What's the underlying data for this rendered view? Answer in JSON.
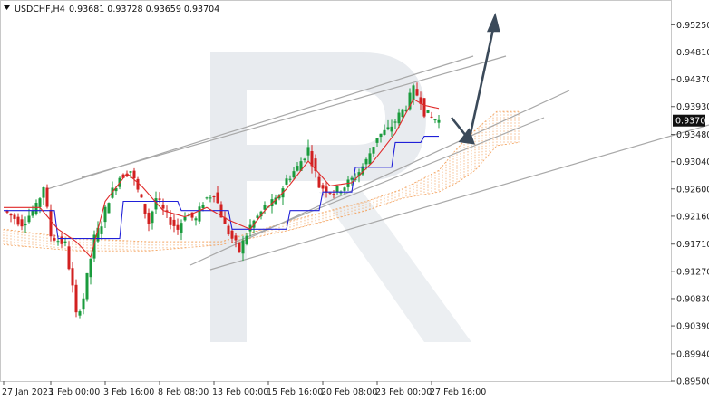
{
  "header": {
    "symbol": "USDCHF,H4",
    "ohlc": "0.93681 0.93728 0.93659 0.93704"
  },
  "current_price": "0.93704",
  "colors": {
    "bull": "#1a9b3c",
    "bear": "#d22020",
    "tenkan": "#e02a2a",
    "kijun": "#2020d8",
    "cloud": "#f3a05a",
    "trendline": "#a8a8a8",
    "arrow": "#3b4a5a",
    "watermark": "#e8ebef",
    "price_box": "#111111"
  },
  "chart_data": {
    "type": "candlestick",
    "ylim": [
      0.895,
      0.9565
    ],
    "y_ticks": [
      "0.95250",
      "0.94810",
      "0.94370",
      "0.93930",
      "0.93480",
      "0.93040",
      "0.92600",
      "0.92160",
      "0.91710",
      "0.91270",
      "0.90830",
      "0.90390",
      "0.89940",
      "0.89500"
    ],
    "x_ticks": [
      "27 Jan 2023",
      "1 Feb 00:00",
      "3 Feb 16:00",
      "8 Feb 08:00",
      "13 Feb 00:00",
      "15 Feb 16:00",
      "20 Feb 08:00",
      "23 Feb 00:00",
      "27 Feb 16:00"
    ],
    "x_tick_index": [
      0,
      13,
      28,
      43,
      58,
      73,
      88,
      103,
      118
    ],
    "anchor_closes": [
      [
        0,
        0.9225
      ],
      [
        5,
        0.9205
      ],
      [
        9,
        0.923
      ],
      [
        11,
        0.9265
      ],
      [
        13,
        0.9185
      ],
      [
        17,
        0.917
      ],
      [
        19,
        0.91
      ],
      [
        20,
        0.9055
      ],
      [
        22,
        0.9085
      ],
      [
        25,
        0.918
      ],
      [
        27,
        0.9205
      ],
      [
        29,
        0.9245
      ],
      [
        32,
        0.928
      ],
      [
        35,
        0.929
      ],
      [
        38,
        0.924
      ],
      [
        40,
        0.9205
      ],
      [
        42,
        0.9245
      ],
      [
        45,
        0.9215
      ],
      [
        48,
        0.9195
      ],
      [
        50,
        0.922
      ],
      [
        53,
        0.921
      ],
      [
        55,
        0.924
      ],
      [
        58,
        0.9255
      ],
      [
        61,
        0.92
      ],
      [
        63,
        0.918
      ],
      [
        65,
        0.916
      ],
      [
        68,
        0.92
      ],
      [
        72,
        0.923
      ],
      [
        75,
        0.924
      ],
      [
        78,
        0.9275
      ],
      [
        81,
        0.9295
      ],
      [
        84,
        0.9325
      ],
      [
        85,
        0.9305
      ],
      [
        87,
        0.9265
      ],
      [
        91,
        0.9255
      ],
      [
        94,
        0.9265
      ],
      [
        97,
        0.928
      ],
      [
        100,
        0.9305
      ],
      [
        103,
        0.9345
      ],
      [
        106,
        0.9355
      ],
      [
        108,
        0.937
      ],
      [
        111,
        0.9395
      ],
      [
        113,
        0.942
      ],
      [
        115,
        0.9405
      ],
      [
        116,
        0.9385
      ],
      [
        118,
        0.9375
      ],
      [
        120,
        0.937
      ]
    ],
    "tenkan_anchors": [
      [
        0,
        0.923
      ],
      [
        10,
        0.923
      ],
      [
        15,
        0.9195
      ],
      [
        20,
        0.9175
      ],
      [
        24,
        0.915
      ],
      [
        28,
        0.924
      ],
      [
        34,
        0.9285
      ],
      [
        38,
        0.9265
      ],
      [
        44,
        0.9225
      ],
      [
        50,
        0.9215
      ],
      [
        56,
        0.923
      ],
      [
        62,
        0.921
      ],
      [
        68,
        0.9195
      ],
      [
        72,
        0.9225
      ],
      [
        78,
        0.926
      ],
      [
        84,
        0.9305
      ],
      [
        90,
        0.9265
      ],
      [
        96,
        0.927
      ],
      [
        102,
        0.9305
      ],
      [
        108,
        0.935
      ],
      [
        113,
        0.9405
      ],
      [
        116,
        0.9395
      ],
      [
        120,
        0.939
      ]
    ],
    "kijun_anchors": [
      [
        0,
        0.9225
      ],
      [
        8,
        0.9225
      ],
      [
        14,
        0.9225
      ],
      [
        15,
        0.918
      ],
      [
        32,
        0.918
      ],
      [
        33,
        0.924
      ],
      [
        48,
        0.924
      ],
      [
        49,
        0.9225
      ],
      [
        62,
        0.9225
      ],
      [
        63,
        0.9195
      ],
      [
        78,
        0.9195
      ],
      [
        79,
        0.9225
      ],
      [
        87,
        0.9225
      ],
      [
        88,
        0.9255
      ],
      [
        96,
        0.9255
      ],
      [
        97,
        0.9295
      ],
      [
        107,
        0.9295
      ],
      [
        108,
        0.9335
      ],
      [
        115,
        0.9335
      ],
      [
        116,
        0.9345
      ],
      [
        120,
        0.9345
      ]
    ],
    "cloud_top_anchors": [
      [
        0,
        0.9195
      ],
      [
        20,
        0.918
      ],
      [
        40,
        0.9175
      ],
      [
        60,
        0.9175
      ],
      [
        80,
        0.921
      ],
      [
        100,
        0.924
      ],
      [
        110,
        0.926
      ],
      [
        120,
        0.929
      ],
      [
        125,
        0.9325
      ],
      [
        130,
        0.9355
      ],
      [
        136,
        0.9385
      ],
      [
        142,
        0.9385
      ]
    ],
    "cloud_bottom_anchors": [
      [
        0,
        0.917
      ],
      [
        20,
        0.916
      ],
      [
        40,
        0.916
      ],
      [
        60,
        0.917
      ],
      [
        80,
        0.9195
      ],
      [
        100,
        0.9225
      ],
      [
        110,
        0.9245
      ],
      [
        120,
        0.9255
      ],
      [
        125,
        0.927
      ],
      [
        130,
        0.929
      ],
      [
        136,
        0.933
      ],
      [
        142,
        0.9335
      ]
    ]
  }
}
